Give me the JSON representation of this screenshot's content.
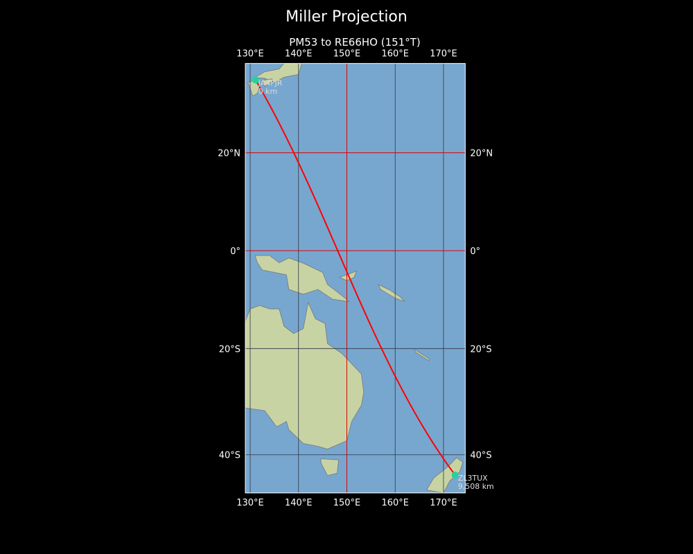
{
  "title": "Miller Projection",
  "subtitle": "PM53 to RE66HO (151°T)",
  "map": {
    "projection": "Miller",
    "lon_range": [
      129,
      174.5
    ],
    "lat_range": [
      -46.5,
      37
    ],
    "ocean_color": "#77a7cf",
    "land_color": "#c8d3a4",
    "path_color": "#ff0000",
    "marker_color": "#22d39a",
    "lon_ticks": [
      {
        "v": 130,
        "label": "130°E"
      },
      {
        "v": 140,
        "label": "140°E"
      },
      {
        "v": 150,
        "label": "150°E"
      },
      {
        "v": 160,
        "label": "160°E"
      },
      {
        "v": 170,
        "label": "170°E"
      }
    ],
    "lat_ticks": [
      {
        "v": 20,
        "label": "20°N"
      },
      {
        "v": 0,
        "label": "0°"
      },
      {
        "v": -20,
        "label": "20°S"
      },
      {
        "v": -40,
        "label": "40°S"
      }
    ],
    "red_gridlines": {
      "lon": [
        150
      ],
      "lat": [
        20,
        0
      ]
    },
    "start": {
      "call": "JA4FJR",
      "dist": "0 km",
      "lon": 131.1,
      "lat": 34.0
    },
    "end": {
      "call": "ZL3TUX",
      "dist": "9,508 km",
      "lon": 172.4,
      "lat": -43.5
    }
  }
}
